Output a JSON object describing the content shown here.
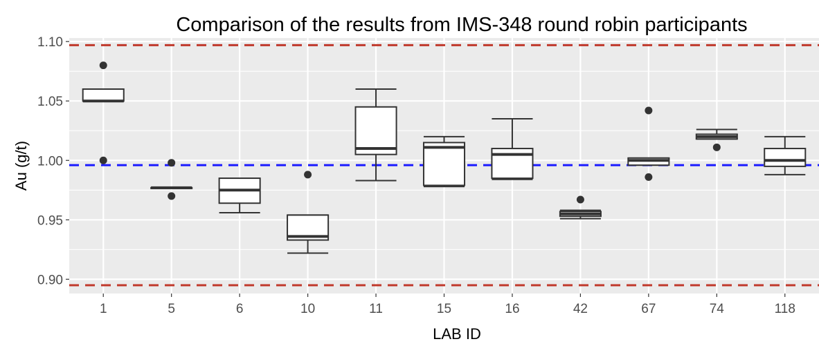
{
  "chart_data": {
    "type": "boxplot",
    "title": "Comparison of the results from IMS-348 round robin participants",
    "xlabel": "LAB ID",
    "ylabel": "Au (g/t)",
    "ylim": [
      0.888,
      1.103
    ],
    "yticks": [
      0.9,
      0.95,
      1.0,
      1.05,
      1.1
    ],
    "ytick_labels": [
      "0.90",
      "0.95",
      "1.00",
      "1.05",
      "1.10"
    ],
    "grid": true,
    "categories": [
      "1",
      "5",
      "6",
      "10",
      "11",
      "15",
      "16",
      "42",
      "67",
      "74",
      "118"
    ],
    "boxes": [
      {
        "lab": "1",
        "min": 1.05,
        "q1": 1.05,
        "median": 1.05,
        "q3": 1.06,
        "max": 1.06,
        "outliers": [
          1.08,
          1.0
        ]
      },
      {
        "lab": "5",
        "min": 0.977,
        "q1": 0.977,
        "median": 0.977,
        "q3": 0.977,
        "max": 0.977,
        "outliers": [
          0.998,
          0.97
        ]
      },
      {
        "lab": "6",
        "min": 0.956,
        "q1": 0.964,
        "median": 0.975,
        "q3": 0.985,
        "max": 0.985,
        "outliers": []
      },
      {
        "lab": "10",
        "min": 0.922,
        "q1": 0.933,
        "median": 0.936,
        "q3": 0.954,
        "max": 0.954,
        "outliers": [
          0.988
        ]
      },
      {
        "lab": "11",
        "min": 0.983,
        "q1": 1.005,
        "median": 1.01,
        "q3": 1.045,
        "max": 1.06,
        "outliers": []
      },
      {
        "lab": "15",
        "min": 0.978,
        "q1": 0.979,
        "median": 1.011,
        "q3": 1.015,
        "max": 1.02,
        "outliers": []
      },
      {
        "lab": "16",
        "min": 0.984,
        "q1": 0.985,
        "median": 1.005,
        "q3": 1.01,
        "max": 1.035,
        "outliers": []
      },
      {
        "lab": "42",
        "min": 0.951,
        "q1": 0.953,
        "median": 0.955,
        "q3": 0.957,
        "max": 0.958,
        "outliers": [
          0.967
        ]
      },
      {
        "lab": "67",
        "min": 0.996,
        "q1": 0.996,
        "median": 1.0,
        "q3": 1.002,
        "max": 1.002,
        "outliers": [
          1.042,
          0.986
        ]
      },
      {
        "lab": "74",
        "min": 1.018,
        "q1": 1.018,
        "median": 1.02,
        "q3": 1.022,
        "max": 1.026,
        "outliers": [
          1.011
        ]
      },
      {
        "lab": "118",
        "min": 0.988,
        "q1": 0.995,
        "median": 1.0,
        "q3": 1.01,
        "max": 1.02,
        "outliers": []
      }
    ],
    "reference_lines": [
      {
        "y": 1.097,
        "color": "#c0392b",
        "style": "dashed"
      },
      {
        "y": 0.996,
        "color": "#1a1aff",
        "style": "dashed"
      },
      {
        "y": 0.895,
        "color": "#c0392b",
        "style": "dashed"
      }
    ],
    "colors": {
      "panel_background": "#ebebeb",
      "grid": "#ffffff",
      "box_fill": "#ffffff",
      "box_stroke": "#333333",
      "point": "#333333"
    }
  }
}
